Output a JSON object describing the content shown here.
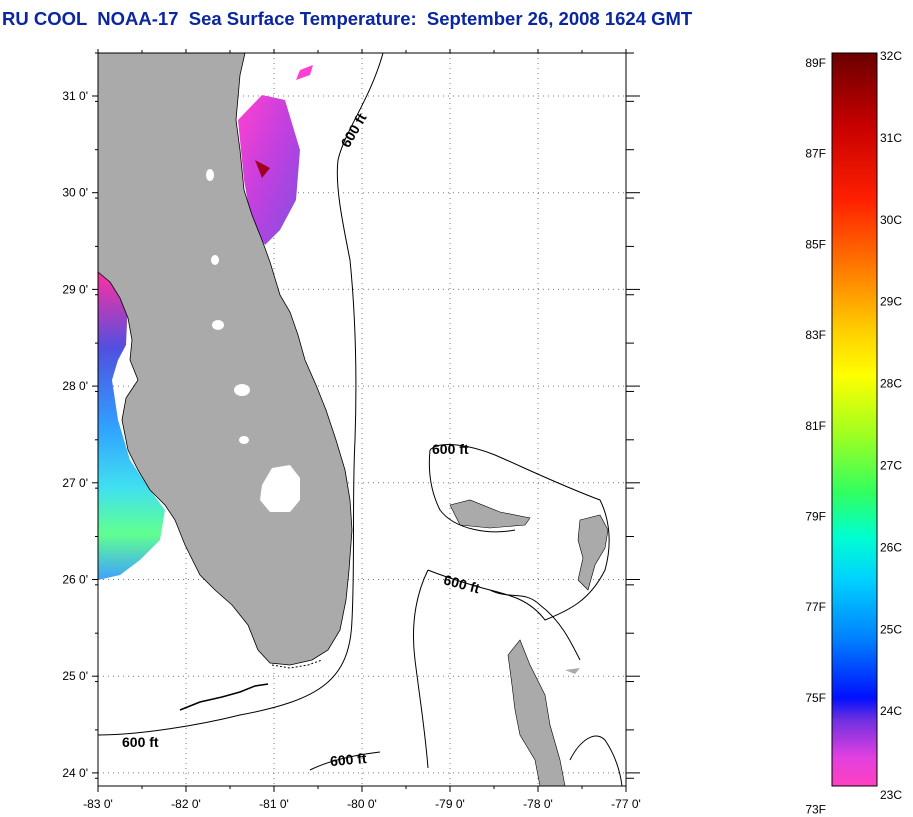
{
  "title": "RU COOL  NOAA-17  Sea Surface Temperature:  September 26, 2008 1624 GMT",
  "colors": {
    "land": "#aaaaaa",
    "title": "#0a26a0",
    "grid": "#555555"
  },
  "axes": {
    "longitudes": [
      {
        "value": -83,
        "label": "-83 0'"
      },
      {
        "value": -82,
        "label": "-82 0'"
      },
      {
        "value": -81,
        "label": "-81 0'"
      },
      {
        "value": -80,
        "label": "-80 0'"
      },
      {
        "value": -79,
        "label": "-79 0'"
      },
      {
        "value": -78,
        "label": "-78 0'"
      },
      {
        "value": -77,
        "label": "-77 0'"
      }
    ],
    "latitudes": [
      {
        "value": 31,
        "label": "31 0'"
      },
      {
        "value": 30,
        "label": "30 0'"
      },
      {
        "value": 29,
        "label": "29 0'"
      },
      {
        "value": 28,
        "label": "28 0'"
      },
      {
        "value": 27,
        "label": "27 0'"
      },
      {
        "value": 26,
        "label": "26 0'"
      },
      {
        "value": 25,
        "label": "25 0'"
      },
      {
        "value": 24,
        "label": "24 0'"
      }
    ]
  },
  "contour_labels": [
    "600 ft",
    "600 ft",
    "600 ft",
    "600 ft",
    "600 ft"
  ],
  "colorbar": {
    "fahrenheit": [
      "89F",
      "87F",
      "85F",
      "83F",
      "81F",
      "79F",
      "77F",
      "75F",
      "73F"
    ],
    "celsius": [
      "32C",
      "31C",
      "30C",
      "29C",
      "28C",
      "27C",
      "26C",
      "25C",
      "24C",
      "23C"
    ]
  }
}
